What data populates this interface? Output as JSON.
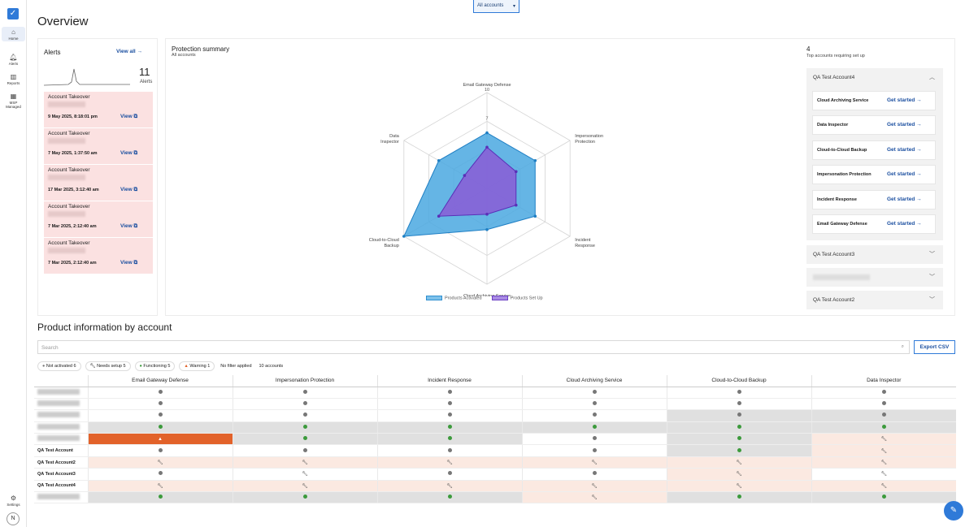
{
  "nav": {
    "items": [
      {
        "label": "Home",
        "icon": "home-icon"
      },
      {
        "label": "Alerts",
        "icon": "bell-icon"
      },
      {
        "label": "Reports",
        "icon": "bar-chart-icon"
      },
      {
        "label": "MSP Managed",
        "icon": "building-icon"
      }
    ],
    "settings_label": "Settings",
    "avatar_initial": "N"
  },
  "account_select": {
    "value": "All accounts"
  },
  "page_title": "Overview",
  "alerts": {
    "title": "Alerts",
    "view_all": "View all",
    "count": "11",
    "count_label": "Alerts",
    "items": [
      {
        "type": "Account Takeover",
        "date": "9 May 2025, 8:18:01 pm",
        "view": "View"
      },
      {
        "type": "Account Takeover",
        "date": "7 May 2025, 1:37:50 am",
        "view": "View"
      },
      {
        "type": "Account Takeover",
        "date": "17 Mar 2025, 3:12:40 am",
        "view": "View"
      },
      {
        "type": "Account Takeover",
        "date": "7 Mar 2025, 2:12:40 am",
        "view": "View"
      },
      {
        "type": "Account Takeover",
        "date": "7 Mar 2025, 2:12:40 am",
        "view": "View"
      }
    ]
  },
  "protection": {
    "title": "Protection summary",
    "subtitle": "All accounts",
    "legend": {
      "activated": "Products Activated",
      "setup": "Products Set Up"
    },
    "colors": {
      "activated": "#4aa8e0",
      "setup": "#8a5cd6"
    }
  },
  "chart_data": {
    "type": "radar",
    "axes": [
      "Email Gateway Defense",
      "Impersonation Protection",
      "Incident Response",
      "Cloud Archiving Service",
      "Cloud-to-Cloud Backup",
      "Data Inspector"
    ],
    "ticks": [
      "10",
      "7"
    ],
    "range": [
      0,
      10
    ],
    "series": [
      {
        "name": "Products Activated",
        "values": [
          5.8,
          5.8,
          5.8,
          4.3,
          10,
          5.8
        ]
      },
      {
        "name": "Products Set Up",
        "values": [
          4.3,
          3.5,
          3.5,
          2.7,
          5.8,
          2.7
        ]
      }
    ]
  },
  "accounts_panel": {
    "count": "4",
    "label": "Top accounts requiring set up",
    "expanded": {
      "name": "QA Test Account4",
      "products": [
        {
          "name": "Cloud Archiving Service",
          "action": "Get started"
        },
        {
          "name": "Data Inspector",
          "action": "Get started"
        },
        {
          "name": "Cloud-to-Cloud Backup",
          "action": "Get started"
        },
        {
          "name": "Impersonation Protection",
          "action": "Get started"
        },
        {
          "name": "Incident Response",
          "action": "Get started"
        },
        {
          "name": "Email Gateway Defense",
          "action": "Get started"
        }
      ]
    },
    "collapsed": [
      "QA Test Account3",
      "",
      "QA Test Account2"
    ]
  },
  "product_info": {
    "title": "Product information by account",
    "search_placeholder": "Search",
    "export_label": "Export CSV",
    "filters": [
      {
        "label": "Not activated 6",
        "icon": "grey-dot-icon"
      },
      {
        "label": "Needs setup 5",
        "icon": "wrench-icon"
      },
      {
        "label": "Functioning 5",
        "icon": "green-check-icon"
      },
      {
        "label": "Warning 1",
        "icon": "warning-triangle-icon"
      }
    ],
    "no_filter": "No filter applied",
    "account_count": "10 accounts",
    "columns": [
      "Email Gateway Defense",
      "Impersonation Protection",
      "Incident Response",
      "Cloud Archiving Service",
      "Cloud-to-Cloud Backup",
      "Data Inspector"
    ],
    "rows": [
      {
        "name": "",
        "cells": [
          "na",
          "na",
          "na",
          "na",
          "na",
          "na"
        ],
        "bg": [
          "",
          "",
          "",
          "",
          "",
          ""
        ]
      },
      {
        "name": "",
        "cells": [
          "na",
          "na",
          "na",
          "na",
          "na",
          "na"
        ],
        "bg": [
          "",
          "",
          "",
          "",
          "",
          ""
        ]
      },
      {
        "name": "",
        "cells": [
          "na",
          "na",
          "na",
          "na",
          "na",
          "na"
        ],
        "bg": [
          "",
          "",
          "",
          "",
          "grey",
          "grey"
        ]
      },
      {
        "name": "",
        "cells": [
          "ok",
          "ok",
          "ok",
          "ok",
          "ok",
          "ok"
        ],
        "bg": [
          "grey",
          "grey",
          "grey",
          "grey",
          "grey",
          "grey"
        ]
      },
      {
        "name": "",
        "cells": [
          "warn",
          "ok",
          "ok",
          "na",
          "ok",
          "setup"
        ],
        "bg": [
          "warn",
          "grey",
          "grey",
          "",
          "grey",
          "pink"
        ]
      },
      {
        "name": "QA Test Account",
        "cells": [
          "na",
          "na",
          "na",
          "na",
          "ok",
          "setup"
        ],
        "bg": [
          "",
          "",
          "",
          "",
          "grey",
          "pink"
        ]
      },
      {
        "name": "QA Test Account2",
        "cells": [
          "setup",
          "setup",
          "setup",
          "setup",
          "setup",
          "setup"
        ],
        "bg": [
          "pink",
          "pink",
          "pink",
          "pink",
          "pink",
          "pink"
        ]
      },
      {
        "name": "QA Test Account3",
        "cells": [
          "na",
          "setup",
          "na",
          "na",
          "setup",
          "setup"
        ],
        "bg": [
          "",
          "",
          "",
          "",
          "pink",
          ""
        ]
      },
      {
        "name": "QA Test Account4",
        "cells": [
          "setup",
          "setup",
          "setup",
          "setup",
          "setup",
          "setup"
        ],
        "bg": [
          "pink",
          "pink",
          "pink",
          "pink",
          "pink",
          "pink"
        ]
      },
      {
        "name": "",
        "cells": [
          "ok",
          "ok",
          "ok",
          "setup",
          "ok",
          "ok"
        ],
        "bg": [
          "grey",
          "grey",
          "grey",
          "pink",
          "grey",
          "grey"
        ]
      }
    ]
  }
}
